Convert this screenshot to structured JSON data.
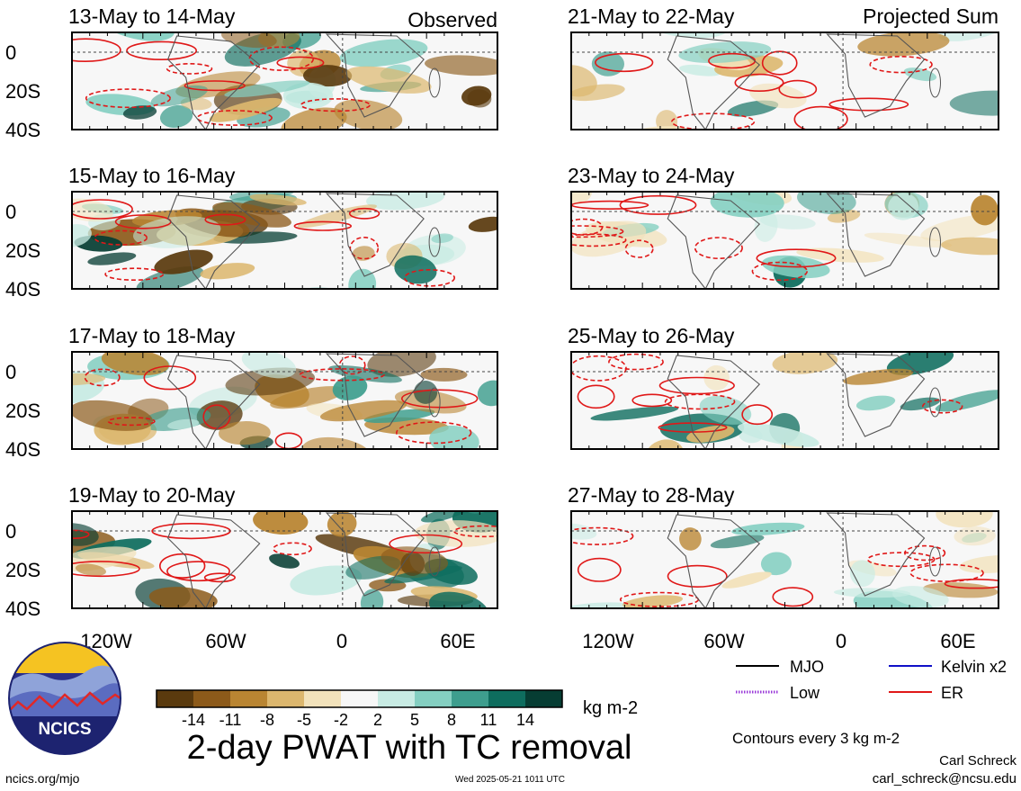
{
  "header": {
    "left_label": "Observed",
    "right_label": "Projected Sum"
  },
  "panels": {
    "left": [
      {
        "title": "13-May to 14-May"
      },
      {
        "title": "15-May to 16-May"
      },
      {
        "title": "17-May to 18-May"
      },
      {
        "title": "19-May to 20-May"
      }
    ],
    "right": [
      {
        "title": "21-May to 22-May"
      },
      {
        "title": "23-May to 24-May"
      },
      {
        "title": "25-May to 26-May"
      },
      {
        "title": "27-May to 28-May"
      }
    ]
  },
  "axes": {
    "lat_ticks": [
      "0",
      "20S",
      "40S"
    ],
    "lon_ticks": [
      "120W",
      "60W",
      "0",
      "60E"
    ]
  },
  "colorbar": {
    "tick_labels": [
      "-14",
      "-11",
      "-8",
      "-5",
      "-2",
      "2",
      "5",
      "8",
      "11",
      "14"
    ],
    "units": "kg m-2",
    "colors": [
      "#5a3a0e",
      "#8c5a1a",
      "#b98532",
      "#dcb76e",
      "#f2e2bb",
      "#f7f7f7",
      "#c8ebe3",
      "#84cfc1",
      "#3e9e8e",
      "#0e6d5e",
      "#063d33"
    ]
  },
  "title": "2-day PWAT with TC removal",
  "legend": {
    "items": [
      {
        "label": "MJO",
        "color": "#000000",
        "style": "solid"
      },
      {
        "label": "Kelvin x2",
        "color": "#1010c8",
        "style": "solid"
      },
      {
        "label": "Low",
        "color": "#9a3ad8",
        "style": "dotted"
      },
      {
        "label": "ER",
        "color": "#e01818",
        "style": "solid"
      }
    ],
    "contour_note": "Contours every 3 kg m-2"
  },
  "footer": {
    "site": "ncics.org/mjo",
    "timestamp": "Wed 2025-05-21 1011 UTC",
    "author": "Carl Schreck",
    "email": "carl_schreck@ncsu.edu"
  },
  "logo": {
    "text": "NCICS"
  }
}
